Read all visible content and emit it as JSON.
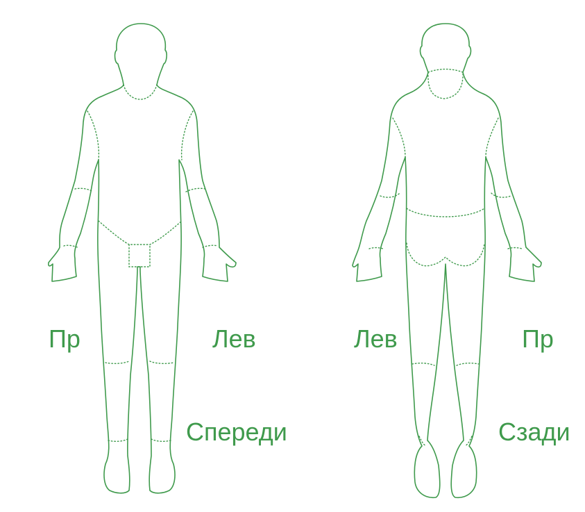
{
  "front": {
    "right_label": "Пр",
    "left_label": "Лев",
    "view_label": "Спереди"
  },
  "back": {
    "left_label": "Лев",
    "right_label": "Пр",
    "view_label": "Сзади"
  },
  "colors": {
    "line": "#3f9a4c",
    "background": "#ffffff"
  }
}
